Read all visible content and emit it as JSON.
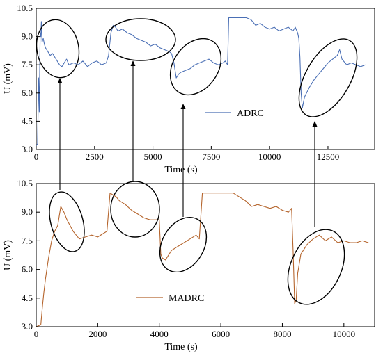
{
  "chart_data": [
    {
      "type": "line",
      "title": "",
      "xlabel": "Time (s)",
      "ylabel": "U (mV)",
      "xlim": [
        0,
        14500
      ],
      "ylim": [
        3.0,
        10.5
      ],
      "xticks": [
        0,
        2500,
        5000,
        7500,
        10000,
        12500
      ],
      "xtick_labels": [
        "0",
        "2500",
        "5000",
        "7500",
        "10000",
        "12500"
      ],
      "yticks": [
        3.0,
        4.5,
        6.0,
        7.5,
        9.0,
        10.5
      ],
      "ytick_labels": [
        "3.0",
        "4.5",
        "6.0",
        "7.5",
        "9.0",
        "10.5"
      ],
      "legend_position": "middle",
      "series": [
        {
          "name": "ADRC",
          "color": "#4a6fb5",
          "x": [
            0,
            60,
            100,
            130,
            150,
            170,
            200,
            220,
            250,
            300,
            350,
            400,
            500,
            600,
            700,
            800,
            900,
            1000,
            1100,
            1200,
            1300,
            1400,
            1600,
            1800,
            2000,
            2200,
            2400,
            2600,
            2800,
            3000,
            3100,
            3200,
            3300,
            3400,
            3500,
            3700,
            3900,
            4100,
            4300,
            4500,
            4700,
            4900,
            5100,
            5300,
            5500,
            5700,
            5800,
            5900,
            6000,
            6100,
            6200,
            6400,
            6600,
            6800,
            7000,
            7200,
            7400,
            7600,
            7800,
            8000,
            8100,
            8200,
            8250,
            8400,
            8600,
            8800,
            9000,
            9200,
            9400,
            9600,
            9800,
            10000,
            10200,
            10400,
            10600,
            10800,
            11000,
            11100,
            11200,
            11250,
            11300,
            11350,
            11400,
            11500,
            11700,
            11900,
            12100,
            12300,
            12500,
            12700,
            12900,
            13000,
            13100,
            13300,
            13500,
            13700,
            13900,
            14100
          ],
          "values": [
            3.2,
            3.3,
            6.8,
            5.0,
            7.0,
            9.2,
            9.0,
            9.8,
            8.7,
            8.9,
            8.6,
            8.4,
            8.2,
            8.0,
            8.1,
            7.9,
            7.7,
            7.5,
            7.4,
            7.6,
            7.8,
            7.5,
            7.6,
            7.5,
            7.7,
            7.4,
            7.6,
            7.7,
            7.5,
            7.6,
            8.0,
            9.2,
            9.6,
            9.5,
            9.3,
            9.4,
            9.2,
            9.1,
            8.9,
            8.8,
            8.7,
            8.5,
            8.6,
            8.4,
            8.3,
            8.2,
            8.1,
            7.6,
            6.8,
            7.0,
            7.1,
            7.2,
            7.3,
            7.5,
            7.6,
            7.7,
            7.8,
            7.6,
            7.5,
            7.6,
            7.7,
            7.5,
            10.0,
            10.0,
            10.0,
            10.0,
            10.0,
            9.9,
            9.6,
            9.7,
            9.5,
            9.4,
            9.5,
            9.3,
            9.4,
            9.5,
            9.3,
            9.5,
            9.2,
            8.9,
            7.9,
            6.0,
            5.2,
            5.8,
            6.3,
            6.7,
            7.0,
            7.3,
            7.6,
            7.8,
            8.0,
            8.3,
            7.8,
            7.5,
            7.6,
            7.5,
            7.4,
            7.5
          ]
        }
      ]
    },
    {
      "type": "line",
      "title": "",
      "xlabel": "Time (s)",
      "ylabel": "U (mV)",
      "xlim": [
        0,
        11000
      ],
      "ylim": [
        3.0,
        10.5
      ],
      "xticks": [
        0,
        2000,
        4000,
        6000,
        8000,
        10000
      ],
      "xtick_labels": [
        "0",
        "2000",
        "4000",
        "6000",
        "8000",
        "10000"
      ],
      "yticks": [
        3.0,
        4.5,
        6.0,
        7.5,
        9.0,
        10.5
      ],
      "ytick_labels": [
        "3.0",
        "4.5",
        "6.0",
        "7.5",
        "9.0",
        "10.5"
      ],
      "legend_position": "bottom-middle",
      "series": [
        {
          "name": "MADRC",
          "color": "#b5652d",
          "x": [
            0,
            150,
            200,
            250,
            300,
            400,
            500,
            600,
            700,
            800,
            900,
            1000,
            1100,
            1200,
            1300,
            1400,
            1600,
            1800,
            2000,
            2200,
            2300,
            2400,
            2500,
            2600,
            2700,
            2900,
            3100,
            3300,
            3500,
            3700,
            3900,
            4000,
            4050,
            4100,
            4200,
            4400,
            4600,
            4800,
            5000,
            5200,
            5300,
            5400,
            5500,
            5600,
            5800,
            6000,
            6200,
            6400,
            6600,
            6800,
            7000,
            7200,
            7400,
            7600,
            7800,
            8000,
            8200,
            8300,
            8350,
            8400,
            8450,
            8500,
            8600,
            8800,
            9000,
            9200,
            9400,
            9600,
            9800,
            10000,
            10200,
            10400,
            10600,
            10800
          ],
          "values": [
            3.0,
            3.1,
            4.0,
            4.8,
            5.5,
            6.6,
            7.5,
            8.0,
            8.3,
            9.3,
            9.0,
            8.6,
            8.3,
            8.0,
            7.8,
            7.6,
            7.7,
            7.8,
            7.7,
            7.9,
            8.0,
            10.0,
            9.9,
            9.8,
            9.6,
            9.4,
            9.1,
            8.9,
            8.7,
            8.6,
            8.6,
            8.6,
            6.8,
            6.6,
            6.5,
            7.0,
            7.2,
            7.4,
            7.6,
            7.8,
            7.6,
            10.0,
            10.0,
            10.0,
            10.0,
            10.0,
            10.0,
            10.0,
            9.8,
            9.6,
            9.3,
            9.4,
            9.3,
            9.2,
            9.3,
            9.1,
            9.0,
            9.2,
            7.0,
            4.2,
            4.4,
            5.8,
            6.8,
            7.3,
            7.6,
            7.8,
            7.5,
            7.7,
            7.4,
            7.5,
            7.4,
            7.4,
            7.5,
            7.4
          ]
        }
      ]
    }
  ]
}
